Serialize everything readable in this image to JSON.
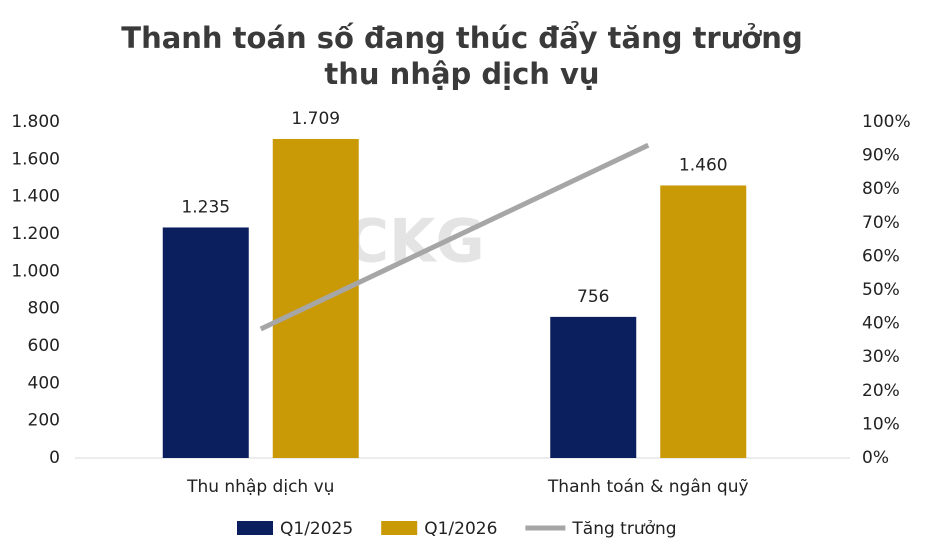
{
  "chart_data": {
    "type": "bar_line",
    "title": "Thanh toán số đang thúc đẩy tăng trưởng thu nhập dịch vụ",
    "watermark": "CKG",
    "categories": [
      "Thu nhập dịch vụ",
      "Thanh toán & ngân quỹ"
    ],
    "series": [
      {
        "name": "Q1/2025",
        "type": "bar",
        "color": "#0b1f5e",
        "values": [
          1235,
          756
        ],
        "value_labels": [
          "1.235",
          "756"
        ]
      },
      {
        "name": "Q1/2026",
        "type": "bar",
        "color": "#c99a06",
        "values": [
          1709,
          1460
        ],
        "value_labels": [
          "1.709",
          "1.460"
        ]
      },
      {
        "name": "Tăng trưởng",
        "type": "line",
        "axis": "y2",
        "color": "#a6a6a6",
        "values": [
          38.4,
          93.1
        ]
      }
    ],
    "ylim": [
      0,
      1800
    ],
    "yticks": [
      0,
      200,
      400,
      600,
      800,
      {
        "value": 1000,
        "label": "1.000"
      },
      {
        "value": 1200,
        "label": "1.200"
      },
      {
        "value": 1400,
        "label": "1.400"
      },
      {
        "value": 1600,
        "label": "1.600"
      },
      {
        "value": 1800,
        "label": "1.800"
      }
    ],
    "y2lim": [
      0,
      100
    ],
    "y2ticks": [
      {
        "value": 0,
        "label": "0%"
      },
      {
        "value": 10,
        "label": "10%"
      },
      {
        "value": 20,
        "label": "20%"
      },
      {
        "value": 30,
        "label": "30%"
      },
      {
        "value": 40,
        "label": "40%"
      },
      {
        "value": 50,
        "label": "50%"
      },
      {
        "value": 60,
        "label": "60%"
      },
      {
        "value": 70,
        "label": "70%"
      },
      {
        "value": 80,
        "label": "80%"
      },
      {
        "value": 90,
        "label": "90%"
      },
      {
        "value": 100,
        "label": "100%"
      }
    ],
    "legend": "bottom"
  }
}
